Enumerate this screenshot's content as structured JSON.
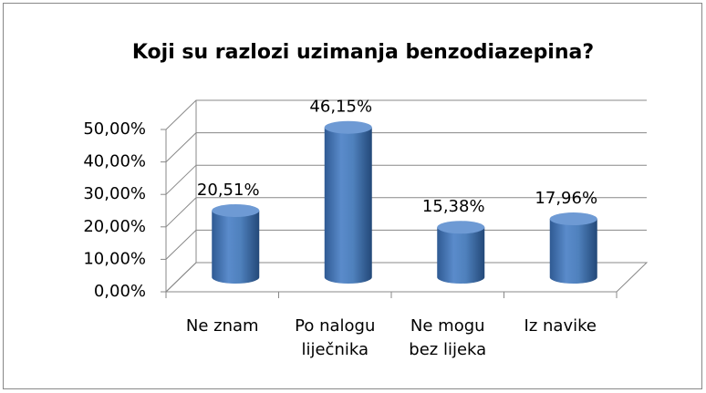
{
  "chart_data": {
    "type": "bar3d",
    "title": "Koji su razlozi uzimanja benzodiazepina?",
    "categories": [
      "Ne znam",
      "Po nalogu liječnika",
      "Ne mogu bez lijeka",
      "Iz navike"
    ],
    "values": [
      20.51,
      46.15,
      15.38,
      17.96
    ],
    "value_labels": [
      "20,51%",
      "46,15%",
      "15,38%",
      "17,96%"
    ],
    "color": "#4f81bd",
    "ylim": [
      0,
      50
    ],
    "yticks": [
      {
        "value": 0,
        "label": "0,00%"
      },
      {
        "value": 10,
        "label": "10,00%"
      },
      {
        "value": 20,
        "label": "20,00%"
      },
      {
        "value": 30,
        "label": "30,00%"
      },
      {
        "value": 40,
        "label": "40,00%"
      },
      {
        "value": 50,
        "label": "50,00%"
      }
    ],
    "grid": true
  }
}
